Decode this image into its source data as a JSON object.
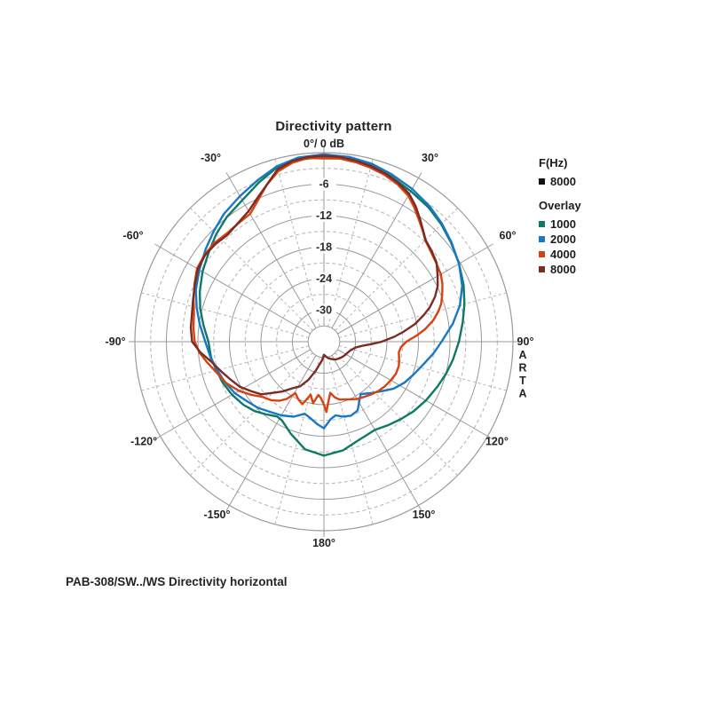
{
  "window": {
    "background": "#ffffff"
  },
  "chart_data": {
    "type": "polar",
    "title": "Directivity pattern",
    "top_label": "0°/ 0 dB",
    "side_label": "ARTA",
    "caption": "PAB-308/SW../WS  Directivity horizontal",
    "grid": {
      "db_outer": 0,
      "db_center": -36,
      "solid_circle_step_db": 6,
      "dashed_circle_step_db": 3,
      "solid_radial_step_deg": 30,
      "dashed_radial_step_deg": 15,
      "solid_color": "#9a9a9a",
      "dashed_color": "#b3b3b3"
    },
    "db_tick_labels": [
      "-6",
      "-12",
      "-18",
      "-24",
      "-30"
    ],
    "db_tick_values": [
      -6,
      -12,
      -18,
      -24,
      -30
    ],
    "angle_labels": [
      {
        "angle": -30,
        "text": "-30°"
      },
      {
        "angle": 30,
        "text": "30°"
      },
      {
        "angle": -60,
        "text": "-60°"
      },
      {
        "angle": 60,
        "text": "60°"
      },
      {
        "angle": -90,
        "text": "-90°"
      },
      {
        "angle": 90,
        "text": "90°"
      },
      {
        "angle": -120,
        "text": "-120°"
      },
      {
        "angle": 120,
        "text": "120°"
      },
      {
        "angle": -150,
        "text": "-150°"
      },
      {
        "angle": 150,
        "text": "150°"
      },
      {
        "angle": 180,
        "text": "180°"
      }
    ],
    "legend": {
      "freq_title": "F(Hz)",
      "freq_items": [
        {
          "label": "8000",
          "color": "#111111"
        }
      ],
      "overlay_title": "Overlay",
      "overlay_items": [
        {
          "label": "1000",
          "color": "#0e7a64"
        },
        {
          "label": "2000",
          "color": "#1779c6"
        },
        {
          "label": "4000",
          "color": "#d64310"
        },
        {
          "label": "8000",
          "color": "#7c2b24"
        }
      ]
    },
    "series": [
      {
        "name": "1000",
        "color": "#0e7a64",
        "unit": "dB",
        "points": [
          [
            -180,
            -14.3
          ],
          [
            -170,
            -15.2
          ],
          [
            -160,
            -17.4
          ],
          [
            -152,
            -19.0
          ],
          [
            -148,
            -19.2
          ],
          [
            -142,
            -18.4
          ],
          [
            -135,
            -17.3
          ],
          [
            -128,
            -16.5
          ],
          [
            -120,
            -15.8
          ],
          [
            -112,
            -15.2
          ],
          [
            -105,
            -14.8
          ],
          [
            -98,
            -14.3
          ],
          [
            -90,
            -14.0
          ],
          [
            -82,
            -12.8
          ],
          [
            -75,
            -11.6
          ],
          [
            -68,
            -10.5
          ],
          [
            -60,
            -9.3
          ],
          [
            -52,
            -8.2
          ],
          [
            -45,
            -7.0
          ],
          [
            -38,
            -5.9
          ],
          [
            -30,
            -4.9
          ],
          [
            -22,
            -3.2
          ],
          [
            -15,
            -1.6
          ],
          [
            -8,
            -1.0
          ],
          [
            0,
            -0.8
          ],
          [
            8,
            -0.9
          ],
          [
            15,
            -1.2
          ],
          [
            22,
            -2.0
          ],
          [
            30,
            -2.9
          ],
          [
            38,
            -3.6
          ],
          [
            45,
            -4.4
          ],
          [
            52,
            -5.3
          ],
          [
            60,
            -6.3
          ],
          [
            68,
            -7.3
          ],
          [
            75,
            -8.3
          ],
          [
            82,
            -9.3
          ],
          [
            90,
            -10.3
          ],
          [
            98,
            -11.2
          ],
          [
            105,
            -12.0
          ],
          [
            112,
            -12.8
          ],
          [
            120,
            -13.6
          ],
          [
            128,
            -14.4
          ],
          [
            135,
            -15.2
          ],
          [
            142,
            -15.9
          ],
          [
            150,
            -16.6
          ],
          [
            156,
            -16.4
          ],
          [
            162,
            -16.0
          ],
          [
            170,
            -15.0
          ],
          [
            180,
            -14.3
          ]
        ]
      },
      {
        "name": "2000",
        "color": "#1779c6",
        "unit": "dB",
        "points": [
          [
            -180,
            -19.5
          ],
          [
            -175,
            -20.3
          ],
          [
            -170,
            -21.2
          ],
          [
            -165,
            -21.8
          ],
          [
            -158,
            -20.6
          ],
          [
            -150,
            -19.8
          ],
          [
            -143,
            -19.2
          ],
          [
            -135,
            -18.2
          ],
          [
            -128,
            -17.5
          ],
          [
            -120,
            -16.4
          ],
          [
            -112,
            -15.6
          ],
          [
            -105,
            -15.0
          ],
          [
            -98,
            -14.2
          ],
          [
            -90,
            -13.4
          ],
          [
            -82,
            -12.1
          ],
          [
            -75,
            -10.9
          ],
          [
            -68,
            -9.7
          ],
          [
            -60,
            -8.6
          ],
          [
            -52,
            -7.4
          ],
          [
            -45,
            -6.3
          ],
          [
            -38,
            -5.1
          ],
          [
            -30,
            -4.0
          ],
          [
            -22,
            -2.7
          ],
          [
            -15,
            -1.4
          ],
          [
            -8,
            -0.6
          ],
          [
            0,
            -0.3
          ],
          [
            8,
            -0.5
          ],
          [
            15,
            -0.9
          ],
          [
            22,
            -1.6
          ],
          [
            30,
            -2.4
          ],
          [
            38,
            -3.3
          ],
          [
            45,
            -4.2
          ],
          [
            52,
            -5.2
          ],
          [
            60,
            -6.3
          ],
          [
            68,
            -7.6
          ],
          [
            75,
            -9.2
          ],
          [
            82,
            -11.2
          ],
          [
            90,
            -13.6
          ],
          [
            96,
            -15.0
          ],
          [
            103,
            -16.6
          ],
          [
            110,
            -17.8
          ],
          [
            117,
            -18.8
          ],
          [
            124,
            -20.0
          ],
          [
            131,
            -21.6
          ],
          [
            138,
            -22.8
          ],
          [
            145,
            -23.8
          ],
          [
            150,
            -22.6
          ],
          [
            154,
            -21.4
          ],
          [
            160,
            -21.0
          ],
          [
            166,
            -21.3
          ],
          [
            171,
            -21.8
          ],
          [
            175,
            -21.2
          ],
          [
            180,
            -19.5
          ]
        ]
      },
      {
        "name": "4000",
        "color": "#d64310",
        "unit": "dB",
        "points": [
          [
            -180,
            -24.0
          ],
          [
            -177,
            -25.2
          ],
          [
            -174,
            -25.8
          ],
          [
            -170,
            -24.1
          ],
          [
            -166,
            -25.6
          ],
          [
            -161,
            -23.4
          ],
          [
            -156,
            -24.0
          ],
          [
            -151,
            -24.8
          ],
          [
            -147,
            -23.0
          ],
          [
            -143,
            -21.9
          ],
          [
            -138,
            -21.0
          ],
          [
            -132,
            -20.3
          ],
          [
            -126,
            -18.8
          ],
          [
            -120,
            -17.3
          ],
          [
            -113,
            -15.8
          ],
          [
            -107,
            -14.9
          ],
          [
            -100,
            -13.4
          ],
          [
            -95,
            -12.2
          ],
          [
            -90,
            -11.4
          ],
          [
            -84,
            -11.0
          ],
          [
            -78,
            -10.7
          ],
          [
            -72,
            -9.9
          ],
          [
            -66,
            -9.0
          ],
          [
            -60,
            -8.1
          ],
          [
            -54,
            -7.9
          ],
          [
            -48,
            -7.9
          ],
          [
            -42,
            -8.3
          ],
          [
            -36,
            -8.2
          ],
          [
            -30,
            -7.9
          ],
          [
            -25,
            -6.3
          ],
          [
            -20,
            -4.2
          ],
          [
            -15,
            -2.4
          ],
          [
            -10,
            -1.4
          ],
          [
            -5,
            -0.9
          ],
          [
            0,
            -1.1
          ],
          [
            5,
            -1.0
          ],
          [
            10,
            -1.3
          ],
          [
            15,
            -1.7
          ],
          [
            20,
            -2.2
          ],
          [
            25,
            -2.9
          ],
          [
            30,
            -3.9
          ],
          [
            34,
            -5.2
          ],
          [
            38,
            -6.6
          ],
          [
            42,
            -7.8
          ],
          [
            45,
            -8.7
          ],
          [
            50,
            -9.4
          ],
          [
            55,
            -9.9
          ],
          [
            60,
            -10.3
          ],
          [
            64,
            -10.9
          ],
          [
            68,
            -11.7
          ],
          [
            72,
            -12.5
          ],
          [
            75,
            -13.4
          ],
          [
            79,
            -14.8
          ],
          [
            83,
            -16.6
          ],
          [
            86,
            -18.2
          ],
          [
            90,
            -20.3
          ],
          [
            94,
            -21.3
          ],
          [
            98,
            -21.6
          ],
          [
            103,
            -21.3
          ],
          [
            108,
            -21.0
          ],
          [
            114,
            -21.0
          ],
          [
            120,
            -21.3
          ],
          [
            126,
            -21.6
          ],
          [
            132,
            -22.0
          ],
          [
            138,
            -22.5
          ],
          [
            144,
            -23.0
          ],
          [
            150,
            -23.4
          ],
          [
            155,
            -23.9
          ],
          [
            160,
            -24.3
          ],
          [
            165,
            -24.6
          ],
          [
            169,
            -25.2
          ],
          [
            173,
            -26.2
          ],
          [
            176,
            -24.4
          ],
          [
            178,
            -22.6
          ],
          [
            180,
            -24.0
          ]
        ]
      },
      {
        "name": "8000",
        "color": "#7c2b24",
        "unit": "dB",
        "points": [
          [
            -180,
            -33.5
          ],
          [
            -174,
            -32.4
          ],
          [
            -169,
            -31.6
          ],
          [
            -164,
            -30.2
          ],
          [
            -158,
            -28.2
          ],
          [
            -152,
            -26.4
          ],
          [
            -146,
            -25.3
          ],
          [
            -140,
            -23.6
          ],
          [
            -135,
            -22.2
          ],
          [
            -130,
            -20.4
          ],
          [
            -124,
            -19.2
          ],
          [
            -118,
            -17.8
          ],
          [
            -112,
            -16.8
          ],
          [
            -106,
            -15.6
          ],
          [
            -100,
            -14.2
          ],
          [
            -95,
            -12.4
          ],
          [
            -90,
            -10.9
          ],
          [
            -84,
            -10.5
          ],
          [
            -78,
            -10.3
          ],
          [
            -72,
            -9.8
          ],
          [
            -66,
            -9.1
          ],
          [
            -60,
            -8.3
          ],
          [
            -54,
            -8.0
          ],
          [
            -48,
            -8.2
          ],
          [
            -42,
            -8.6
          ],
          [
            -36,
            -8.1
          ],
          [
            -30,
            -7.3
          ],
          [
            -25,
            -5.9
          ],
          [
            -20,
            -4.2
          ],
          [
            -15,
            -2.0
          ],
          [
            -10,
            -1.1
          ],
          [
            -5,
            -0.7
          ],
          [
            0,
            -0.6
          ],
          [
            5,
            -0.7
          ],
          [
            10,
            -1.0
          ],
          [
            15,
            -1.4
          ],
          [
            20,
            -1.9
          ],
          [
            25,
            -2.6
          ],
          [
            30,
            -3.5
          ],
          [
            34,
            -4.8
          ],
          [
            38,
            -6.3
          ],
          [
            42,
            -7.7
          ],
          [
            45,
            -8.6
          ],
          [
            50,
            -9.2
          ],
          [
            55,
            -9.8
          ],
          [
            60,
            -11.0
          ],
          [
            64,
            -11.9
          ],
          [
            68,
            -13.2
          ],
          [
            72,
            -14.8
          ],
          [
            75,
            -16.3
          ],
          [
            79,
            -18.3
          ],
          [
            83,
            -20.8
          ],
          [
            86,
            -22.6
          ],
          [
            90,
            -25.0
          ],
          [
            93,
            -27.0
          ],
          [
            96,
            -28.6
          ],
          [
            100,
            -29.8
          ],
          [
            105,
            -30.4
          ],
          [
            110,
            -30.8
          ],
          [
            117,
            -31.1
          ],
          [
            124,
            -31.3
          ],
          [
            131,
            -31.5
          ],
          [
            138,
            -31.7
          ],
          [
            145,
            -31.9
          ],
          [
            152,
            -32.2
          ],
          [
            159,
            -32.5
          ],
          [
            166,
            -32.8
          ],
          [
            173,
            -33.2
          ],
          [
            180,
            -33.5
          ]
        ]
      }
    ]
  }
}
